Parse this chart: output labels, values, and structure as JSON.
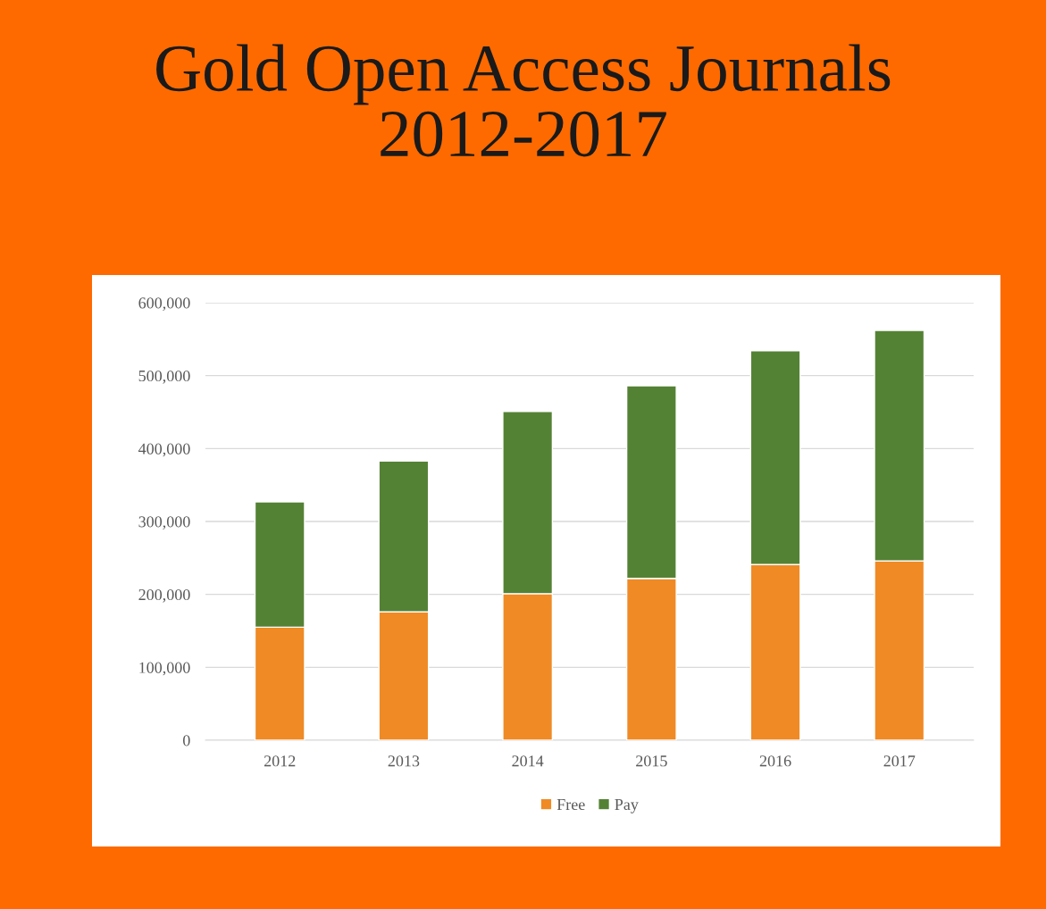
{
  "chart_data": {
    "type": "bar",
    "title": "Gold Open Access Journals\n2012-2017",
    "categories": [
      "2012",
      "2013",
      "2014",
      "2015",
      "2016",
      "2017"
    ],
    "stacked": true,
    "series": [
      {
        "name": "Free",
        "color": "#ef8a25",
        "values": [
          155000,
          176000,
          201000,
          222000,
          241000,
          246000
        ]
      },
      {
        "name": "Pay",
        "color": "#548235",
        "values": [
          172000,
          207000,
          250000,
          264000,
          293000,
          316000
        ]
      }
    ],
    "ylim": [
      0,
      600000
    ],
    "yticks": [
      0,
      {
        "value": 100000,
        "label": "100,000"
      },
      {
        "value": 200000,
        "label": "200,000"
      },
      {
        "value": 300000,
        "label": "300,000"
      },
      {
        "value": 400000,
        "label": "400,000"
      },
      {
        "value": 500000,
        "label": "500,000"
      },
      {
        "value": 600000,
        "label": "600,000"
      }
    ],
    "grid": "y",
    "legend": "bottom"
  }
}
